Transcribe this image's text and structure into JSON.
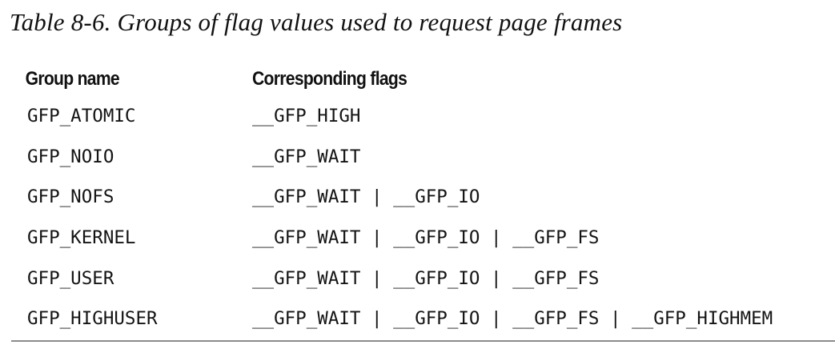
{
  "caption": "Table 8-6. Groups of flag values used to request page frames",
  "table": {
    "headers": [
      "Group name",
      "Corresponding flags"
    ],
    "rows": [
      [
        "GFP_ATOMIC",
        "__GFP_HIGH"
      ],
      [
        "GFP_NOIO",
        "__GFP_WAIT"
      ],
      [
        "GFP_NOFS",
        "__GFP_WAIT | __GFP_IO"
      ],
      [
        "GFP_KERNEL",
        "__GFP_WAIT | __GFP_IO | __GFP_FS"
      ],
      [
        "GFP_USER",
        "__GFP_WAIT | __GFP_IO | __GFP_FS"
      ],
      [
        "GFP_HIGHUSER",
        "__GFP_WAIT | __GFP_IO | __GFP_FS | __GFP_HIGHMEM"
      ]
    ]
  }
}
